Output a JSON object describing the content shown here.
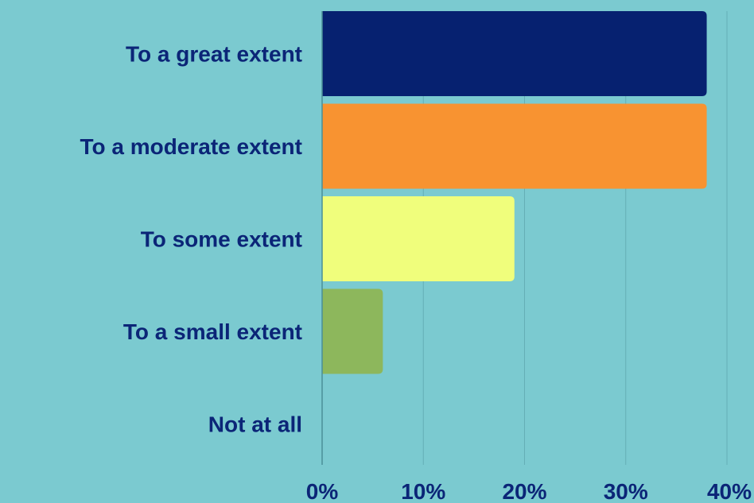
{
  "chart_data": {
    "type": "bar",
    "orientation": "horizontal",
    "categories": [
      "To a great extent",
      "To a moderate extent",
      "To some extent",
      "To a small extent",
      "Not at all"
    ],
    "values": [
      38,
      38,
      19,
      6,
      0
    ],
    "value_unit": "%",
    "xlim": [
      0,
      40
    ],
    "xticks": [
      0,
      10,
      20,
      30,
      40
    ],
    "xtick_labels": [
      "0%",
      "10%",
      "20%",
      "30%",
      "40%"
    ],
    "title": "",
    "xlabel": "",
    "ylabel": "",
    "grid": "vertical",
    "legend": "none",
    "bar_colors": [
      "#062170",
      "#f89331",
      "#f0fe7c",
      "#8db75c",
      "#7bcad0"
    ],
    "label_color": "#0b2577",
    "background_color": "#7bcad0",
    "grid_color": "#64aeb6"
  }
}
